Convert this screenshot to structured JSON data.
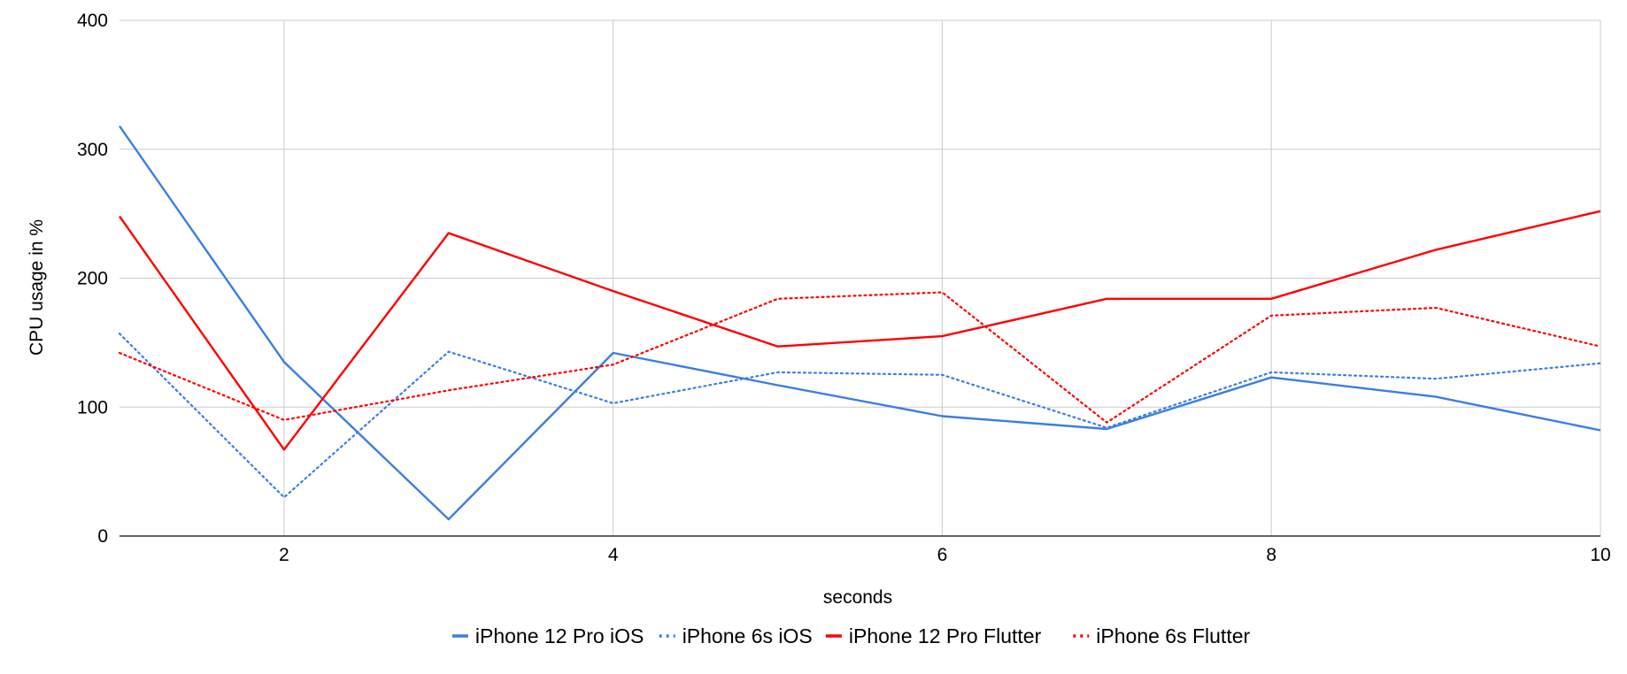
{
  "chart_data": {
    "type": "line",
    "title": "",
    "xlabel": "seconds",
    "ylabel": "CPU usage in %",
    "x": [
      1,
      2,
      3,
      4,
      5,
      6,
      7,
      8,
      9,
      10
    ],
    "xlim": [
      1,
      10
    ],
    "ylim": [
      0,
      400
    ],
    "x_ticks": [
      2,
      4,
      6,
      8,
      10
    ],
    "y_ticks": [
      0,
      100,
      200,
      300,
      400
    ],
    "grid": true,
    "legend_position": "bottom",
    "series": [
      {
        "name": "iPhone 12 Pro iOS",
        "color": "#3a7ee4",
        "style": "solid",
        "values": [
          318,
          135,
          13,
          142,
          117,
          93,
          83,
          123,
          108,
          82
        ]
      },
      {
        "name": "iPhone 6s iOS",
        "color": "#3a7ee4",
        "style": "dotted",
        "values": [
          157,
          30,
          143,
          103,
          127,
          125,
          84,
          127,
          122,
          134
        ]
      },
      {
        "name": "iPhone 12 Pro Flutter",
        "color": "#ff0000",
        "style": "solid",
        "values": [
          248,
          67,
          235,
          190,
          147,
          155,
          184,
          184,
          222,
          252
        ]
      },
      {
        "name": "iPhone 6s Flutter",
        "color": "#ff0000",
        "style": "dotted",
        "values": [
          142,
          90,
          113,
          133,
          184,
          189,
          88,
          171,
          177,
          147
        ]
      }
    ]
  }
}
